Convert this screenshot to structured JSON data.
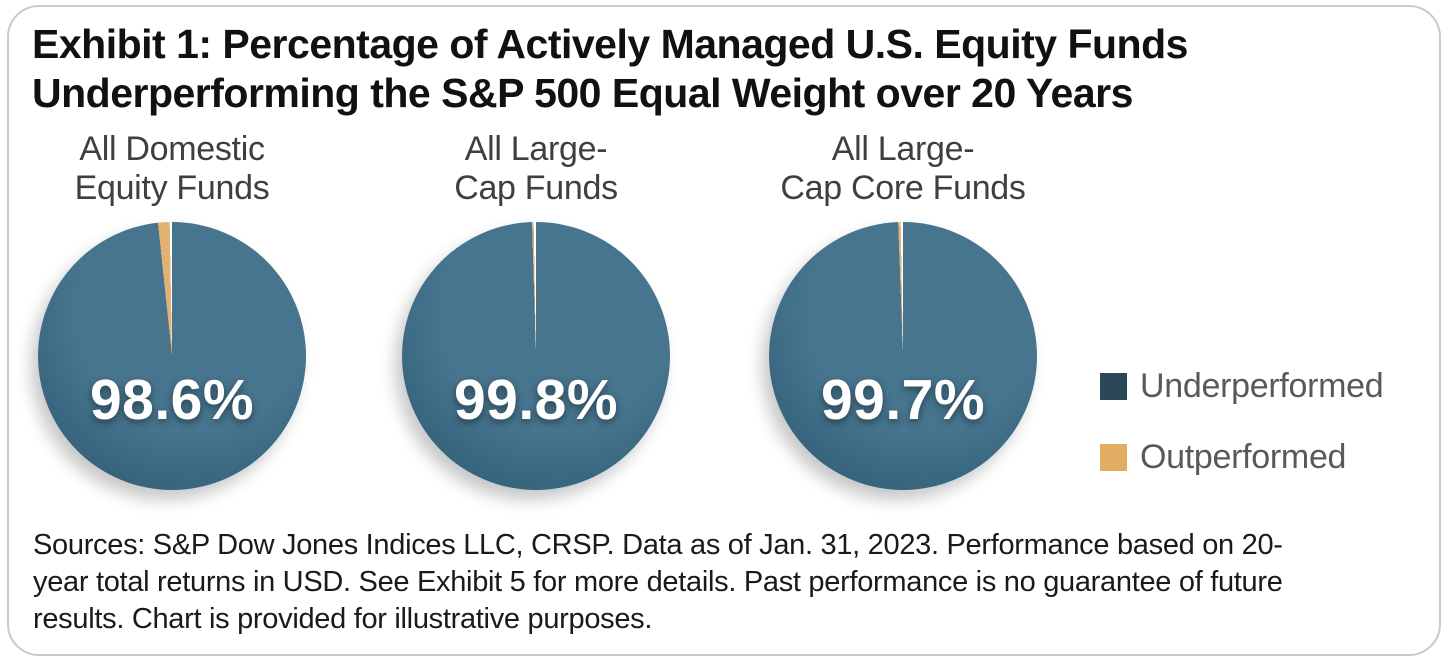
{
  "title": {
    "lines": [
      "Exhibit 1: Percentage of Actively Managed U.S. Equity Funds",
      "Underperforming the S&P 500 Equal Weight over 20 Years"
    ]
  },
  "chart_data": {
    "type": "pie",
    "title": "Exhibit 1: Percentage of Actively Managed U.S. Equity Funds Underperforming the S&P 500 Equal Weight over 20 Years",
    "unit": "%",
    "legend_position": "right",
    "legend_entries": [
      "Underperformed",
      "Outperformed"
    ],
    "charts": [
      {
        "label": "All Domestic Equity Funds",
        "label_lines": [
          "All Domestic",
          "Equity Funds"
        ],
        "display": "98.6%",
        "underperformed_pct": 98.6,
        "outperformed_pct": 1.4
      },
      {
        "label": "All Large-Cap Funds",
        "label_lines": [
          "All Large-",
          "Cap Funds"
        ],
        "display": "99.8%",
        "underperformed_pct": 99.8,
        "outperformed_pct": 0.2
      },
      {
        "label": "All Large-Cap Core Funds",
        "label_lines": [
          "All Large-",
          "Cap Core Funds"
        ],
        "display": "99.7%",
        "underperformed_pct": 99.7,
        "outperformed_pct": 0.3
      }
    ],
    "colors": {
      "underperformed": "#3C6C87",
      "outperformed": "#DFAD6C",
      "slice_divider": "#FFFFFF",
      "legend_underperformed": "#2A4858",
      "legend_outperformed": "#E2AC63"
    }
  },
  "legend": {
    "items": [
      {
        "label": "Underperformed",
        "color": "#2A4858"
      },
      {
        "label": "Outperformed",
        "color": "#E2AC63"
      }
    ]
  },
  "footer": {
    "lines": [
      "Sources: S&P Dow Jones Indices LLC, CRSP.  Data as of Jan. 31, 2023.  Performance based on 20-",
      "year total returns in USD.   See Exhibit 5 for more details.  Past performance is no guarantee of future",
      "results.  Chart is provided for illustrative purposes."
    ]
  }
}
